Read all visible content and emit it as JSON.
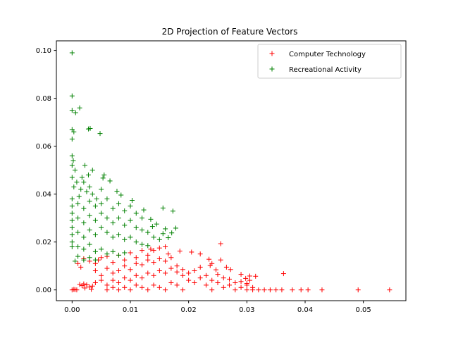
{
  "chart_data": {
    "type": "scatter",
    "title": "2D Projection of Feature Vectors",
    "xlabel": "",
    "ylabel": "",
    "xlim": [
      -0.0027,
      0.0573
    ],
    "ylim": [
      -0.0045,
      0.104
    ],
    "xticks": [
      0.0,
      0.01,
      0.02,
      0.03,
      0.04,
      0.05
    ],
    "xtick_labels": [
      "0.00",
      "0.01",
      "0.02",
      "0.03",
      "0.04",
      "0.05"
    ],
    "yticks": [
      0.0,
      0.02,
      0.04,
      0.06,
      0.08,
      0.1
    ],
    "ytick_labels": [
      "0.00",
      "0.02",
      "0.04",
      "0.06",
      "0.08",
      "0.10"
    ],
    "grid": false,
    "legend_position": "top-right",
    "marker": "+",
    "series": [
      {
        "name": "Computer Technology",
        "color": "#ff0000",
        "points": [
          [
            0.0,
            0.0
          ],
          [
            0.0003,
            0.0002
          ],
          [
            0.0005,
            0.0001
          ],
          [
            0.0008,
            0.0
          ],
          [
            0.0013,
            0.0023
          ],
          [
            0.0017,
            0.0018
          ],
          [
            0.002,
            0.0025
          ],
          [
            0.0022,
            0.0008
          ],
          [
            0.0025,
            0.0021
          ],
          [
            0.003,
            0.0012
          ],
          [
            0.0033,
            0.0002
          ],
          [
            0.0035,
            0.0016
          ],
          [
            0.001,
            0.011
          ],
          [
            0.0015,
            0.0095
          ],
          [
            0.002,
            0.013
          ],
          [
            0.003,
            0.012
          ],
          [
            0.004,
            0.011
          ],
          [
            0.0045,
            0.0125
          ],
          [
            0.005,
            0.0135
          ],
          [
            0.006,
            0.014
          ],
          [
            0.007,
            0.0115
          ],
          [
            0.008,
            0.0145
          ],
          [
            0.009,
            0.0125
          ],
          [
            0.01,
            0.0155
          ],
          [
            0.011,
            0.0135
          ],
          [
            0.012,
            0.0165
          ],
          [
            0.013,
            0.0145
          ],
          [
            0.0135,
            0.017
          ],
          [
            0.014,
            0.0165
          ],
          [
            0.015,
            0.0175
          ],
          [
            0.016,
            0.018
          ],
          [
            0.0165,
            0.015
          ],
          [
            0.004,
            0.008
          ],
          [
            0.005,
            0.006
          ],
          [
            0.006,
            0.009
          ],
          [
            0.007,
            0.007
          ],
          [
            0.008,
            0.008
          ],
          [
            0.009,
            0.01
          ],
          [
            0.01,
            0.0085
          ],
          [
            0.011,
            0.011
          ],
          [
            0.012,
            0.0105
          ],
          [
            0.013,
            0.0125
          ],
          [
            0.014,
            0.0115
          ],
          [
            0.015,
            0.013
          ],
          [
            0.016,
            0.012
          ],
          [
            0.017,
            0.0135
          ],
          [
            0.018,
            0.01
          ],
          [
            0.019,
            0.0085
          ],
          [
            0.004,
            0.003
          ],
          [
            0.005,
            0.004
          ],
          [
            0.006,
            0.002
          ],
          [
            0.007,
            0.004
          ],
          [
            0.008,
            0.003
          ],
          [
            0.009,
            0.005
          ],
          [
            0.01,
            0.004
          ],
          [
            0.011,
            0.006
          ],
          [
            0.012,
            0.005
          ],
          [
            0.013,
            0.007
          ],
          [
            0.014,
            0.006
          ],
          [
            0.015,
            0.008
          ],
          [
            0.016,
            0.007
          ],
          [
            0.017,
            0.009
          ],
          [
            0.018,
            0.0075
          ],
          [
            0.019,
            0.006
          ],
          [
            0.006,
            0.0
          ],
          [
            0.007,
            0.001
          ],
          [
            0.008,
            0.0
          ],
          [
            0.009,
            0.001
          ],
          [
            0.01,
            0.0
          ],
          [
            0.011,
            0.002
          ],
          [
            0.012,
            0.001
          ],
          [
            0.013,
            0.0
          ],
          [
            0.014,
            0.002
          ],
          [
            0.015,
            0.001
          ],
          [
            0.016,
            0.0
          ],
          [
            0.017,
            0.003
          ],
          [
            0.018,
            0.002
          ],
          [
            0.019,
            0.0
          ],
          [
            0.02,
            0.004
          ],
          [
            0.021,
            0.003
          ],
          [
            0.02,
            0.007
          ],
          [
            0.021,
            0.008
          ],
          [
            0.022,
            0.005
          ],
          [
            0.022,
            0.0095
          ],
          [
            0.023,
            0.006
          ],
          [
            0.023,
            0.002
          ],
          [
            0.024,
            0.004
          ],
          [
            0.024,
            0.0
          ],
          [
            0.025,
            0.003
          ],
          [
            0.025,
            0.0065
          ],
          [
            0.026,
            0.001
          ],
          [
            0.026,
            0.005
          ],
          [
            0.027,
            0.002
          ],
          [
            0.027,
            0.0045
          ],
          [
            0.028,
            0.0
          ],
          [
            0.028,
            0.003
          ],
          [
            0.029,
            0.001
          ],
          [
            0.029,
            0.0035
          ],
          [
            0.03,
            0.0
          ],
          [
            0.03,
            0.002
          ],
          [
            0.031,
            0.001
          ],
          [
            0.031,
            0.0
          ],
          [
            0.032,
            0.0
          ],
          [
            0.033,
            0.0
          ],
          [
            0.034,
            0.0
          ],
          [
            0.035,
            0.0
          ],
          [
            0.036,
            0.0
          ],
          [
            0.0255,
            0.0193
          ],
          [
            0.0185,
            0.0162
          ],
          [
            0.0205,
            0.0158
          ],
          [
            0.022,
            0.015
          ],
          [
            0.0235,
            0.0128
          ],
          [
            0.024,
            0.011
          ],
          [
            0.0255,
            0.0125
          ],
          [
            0.0265,
            0.0095
          ],
          [
            0.0237,
            0.0102
          ],
          [
            0.0272,
            0.0085
          ],
          [
            0.029,
            0.0065
          ],
          [
            0.0305,
            0.0058
          ],
          [
            0.0315,
            0.0057
          ],
          [
            0.0298,
            0.0048
          ],
          [
            0.0363,
            0.0068
          ],
          [
            0.0247,
            0.0084
          ],
          [
            0.0305,
            0.004
          ],
          [
            0.03,
            0.0027
          ],
          [
            0.0378,
            0.0
          ],
          [
            0.0393,
            0.0
          ],
          [
            0.0405,
            0.0
          ],
          [
            0.0429,
            0.0
          ],
          [
            0.0491,
            0.0
          ],
          [
            0.0545,
            0.0
          ]
        ]
      },
      {
        "name": "Recreational Activity",
        "color": "#008000",
        "points": [
          [
            0.0,
            0.099
          ],
          [
            0.0,
            0.081
          ],
          [
            0.0,
            0.075
          ],
          [
            0.0006,
            0.074
          ],
          [
            0.0013,
            0.076
          ],
          [
            0.0,
            0.067
          ],
          [
            0.0003,
            0.066
          ],
          [
            0.0,
            0.063
          ],
          [
            0.0031,
            0.0674
          ],
          [
            0.0028,
            0.0672
          ],
          [
            0.0048,
            0.0653
          ],
          [
            0.0,
            0.056
          ],
          [
            0.0002,
            0.054
          ],
          [
            0.0,
            0.052
          ],
          [
            0.0005,
            0.05
          ],
          [
            0.0,
            0.047
          ],
          [
            0.0008,
            0.045
          ],
          [
            0.0003,
            0.043
          ],
          [
            0.0015,
            0.042
          ],
          [
            0.002,
            0.045
          ],
          [
            0.0025,
            0.041
          ],
          [
            0.0012,
            0.039
          ],
          [
            0.003,
            0.043
          ],
          [
            0.0035,
            0.04
          ],
          [
            0.0042,
            0.038
          ],
          [
            0.005,
            0.042
          ],
          [
            0.0055,
            0.048
          ],
          [
            0.0053,
            0.0467
          ],
          [
            0.0065,
            0.0455
          ],
          [
            0.0077,
            0.0412
          ],
          [
            0.0084,
            0.0396
          ],
          [
            0.0035,
            0.05
          ],
          [
            0.0028,
            0.048
          ],
          [
            0.0022,
            0.052
          ],
          [
            0.0017,
            0.047
          ],
          [
            0.0,
            0.038
          ],
          [
            0.0,
            0.035
          ],
          [
            0.0,
            0.032
          ],
          [
            0.0,
            0.029
          ],
          [
            0.0,
            0.026
          ],
          [
            0.0,
            0.023
          ],
          [
            0.0,
            0.02
          ],
          [
            0.0,
            0.018
          ],
          [
            0.001,
            0.036
          ],
          [
            0.002,
            0.034
          ],
          [
            0.003,
            0.037
          ],
          [
            0.004,
            0.035
          ],
          [
            0.005,
            0.036
          ],
          [
            0.006,
            0.038
          ],
          [
            0.007,
            0.034
          ],
          [
            0.008,
            0.036
          ],
          [
            0.009,
            0.033
          ],
          [
            0.01,
            0.035
          ],
          [
            0.011,
            0.032
          ],
          [
            0.012,
            0.03
          ],
          [
            0.0103,
            0.0374
          ],
          [
            0.0123,
            0.0334
          ],
          [
            0.0135,
            0.0295
          ],
          [
            0.0138,
            0.0265
          ],
          [
            0.0145,
            0.0275
          ],
          [
            0.016,
            0.0255
          ],
          [
            0.0156,
            0.0235
          ],
          [
            0.0178,
            0.0258
          ],
          [
            0.0171,
            0.0238
          ],
          [
            0.0156,
            0.0342
          ],
          [
            0.0173,
            0.0329
          ],
          [
            0.0165,
            0.0218
          ],
          [
            0.001,
            0.03
          ],
          [
            0.002,
            0.028
          ],
          [
            0.003,
            0.031
          ],
          [
            0.004,
            0.029
          ],
          [
            0.005,
            0.032
          ],
          [
            0.006,
            0.03
          ],
          [
            0.007,
            0.028
          ],
          [
            0.008,
            0.03
          ],
          [
            0.009,
            0.027
          ],
          [
            0.01,
            0.029
          ],
          [
            0.011,
            0.026
          ],
          [
            0.012,
            0.025
          ],
          [
            0.013,
            0.024
          ],
          [
            0.014,
            0.022
          ],
          [
            0.015,
            0.021
          ],
          [
            0.001,
            0.024
          ],
          [
            0.002,
            0.022
          ],
          [
            0.003,
            0.025
          ],
          [
            0.004,
            0.023
          ],
          [
            0.005,
            0.026
          ],
          [
            0.006,
            0.024
          ],
          [
            0.007,
            0.022
          ],
          [
            0.008,
            0.023
          ],
          [
            0.009,
            0.021
          ],
          [
            0.01,
            0.022
          ],
          [
            0.011,
            0.02
          ],
          [
            0.012,
            0.019
          ],
          [
            0.013,
            0.0185
          ],
          [
            0.001,
            0.018
          ],
          [
            0.002,
            0.017
          ],
          [
            0.003,
            0.019
          ],
          [
            0.004,
            0.016
          ],
          [
            0.005,
            0.017
          ],
          [
            0.006,
            0.015
          ],
          [
            0.007,
            0.016
          ],
          [
            0.008,
            0.0145
          ],
          [
            0.009,
            0.0155
          ],
          [
            0.001,
            0.014
          ],
          [
            0.002,
            0.0125
          ],
          [
            0.003,
            0.0135
          ],
          [
            0.004,
            0.0125
          ],
          [
            0.0005,
            0.012
          ]
        ]
      }
    ]
  }
}
